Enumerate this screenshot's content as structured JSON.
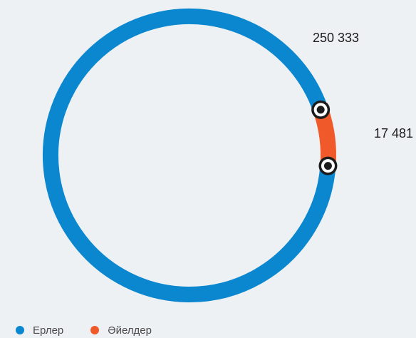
{
  "chart_data": {
    "type": "pie",
    "variant": "donut",
    "categories": [
      "Ерлер",
      "Әйелдер"
    ],
    "values": [
      250333,
      17481
    ],
    "value_labels": [
      "250 333",
      "17 481"
    ],
    "colors": [
      "#0b87cf",
      "#f05a2a"
    ],
    "legend_position": "bottom-left"
  }
}
